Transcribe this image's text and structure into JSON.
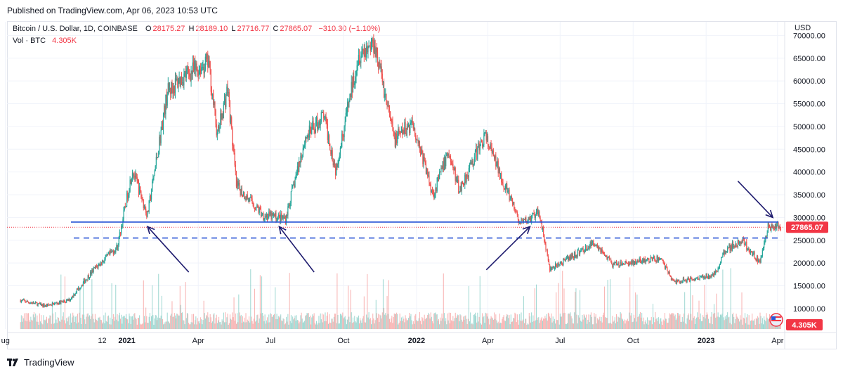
{
  "header": {
    "published": "Published on TradingView.com, Apr 06, 2023 10:53 UTC"
  },
  "legend": {
    "symbol": "Bitcoin / U.S. Dollar, 1D, COINBASE",
    "o_label": "O",
    "o_value": "28175.27",
    "h_label": "H",
    "h_value": "28189.10",
    "l_label": "L",
    "l_value": "27716.77",
    "c_label": "C",
    "c_value": "27865.07",
    "change": "−310.30 (−1.10%)",
    "vol_label": "Vol · BTC",
    "vol_value": "4.305K"
  },
  "footer": {
    "brand": "TradingView"
  },
  "colors": {
    "up": "#26a69a",
    "down": "#ef5350",
    "line": "#2a56d6",
    "arrow": "#1e1b6e",
    "last_price_bg": "#f23645"
  },
  "chart_data": {
    "type": "candlestick",
    "currency_label": "USD",
    "y_ticks": [
      "70000.00",
      "65000.00",
      "60000.00",
      "55000.00",
      "50000.00",
      "45000.00",
      "40000.00",
      "35000.00",
      "30000.00",
      "25000.00",
      "20000.00",
      "15000.00",
      "10000.00"
    ],
    "y_range": [
      5500,
      73000
    ],
    "x_ticks": [
      "ug",
      "12",
      "2021",
      "Apr",
      "Jul",
      "Oct",
      "2022",
      "Apr",
      "Jul",
      "Oct",
      "2023",
      "Apr"
    ],
    "bold_x_ticks": [
      "2021",
      "2022",
      "2023"
    ],
    "last_price": "27865.07",
    "last_volume": "4.305K",
    "support_line": 29000,
    "dashed_line": 25500,
    "anchors": [
      {
        "date": "2020-08-20",
        "price": 11800
      },
      {
        "date": "2020-09-20",
        "price": 10600
      },
      {
        "date": "2020-10-20",
        "price": 11800
      },
      {
        "date": "2020-11-20",
        "price": 18500
      },
      {
        "date": "2020-12-20",
        "price": 23500
      },
      {
        "date": "2021-01-08",
        "price": 40500
      },
      {
        "date": "2021-01-27",
        "price": 30500
      },
      {
        "date": "2021-02-21",
        "price": 57500
      },
      {
        "date": "2021-03-13",
        "price": 61000
      },
      {
        "date": "2021-04-14",
        "price": 64000
      },
      {
        "date": "2021-04-25",
        "price": 48000
      },
      {
        "date": "2021-05-08",
        "price": 58500
      },
      {
        "date": "2021-05-19",
        "price": 37000
      },
      {
        "date": "2021-06-22",
        "price": 30500
      },
      {
        "date": "2021-07-20",
        "price": 29800
      },
      {
        "date": "2021-08-14",
        "price": 47500
      },
      {
        "date": "2021-09-06",
        "price": 52500
      },
      {
        "date": "2021-09-21",
        "price": 40500
      },
      {
        "date": "2021-10-20",
        "price": 66000
      },
      {
        "date": "2021-11-09",
        "price": 68500
      },
      {
        "date": "2021-12-04",
        "price": 47000
      },
      {
        "date": "2021-12-27",
        "price": 51000
      },
      {
        "date": "2022-01-22",
        "price": 35000
      },
      {
        "date": "2022-02-10",
        "price": 44500
      },
      {
        "date": "2022-02-24",
        "price": 36000
      },
      {
        "date": "2022-03-28",
        "price": 48000
      },
      {
        "date": "2022-05-12",
        "price": 28500
      },
      {
        "date": "2022-06-05",
        "price": 31000
      },
      {
        "date": "2022-06-18",
        "price": 18500
      },
      {
        "date": "2022-08-14",
        "price": 24500
      },
      {
        "date": "2022-09-06",
        "price": 19500
      },
      {
        "date": "2022-11-05",
        "price": 21000
      },
      {
        "date": "2022-11-21",
        "price": 15800
      },
      {
        "date": "2023-01-12",
        "price": 17500
      },
      {
        "date": "2023-01-25",
        "price": 23000
      },
      {
        "date": "2023-02-16",
        "price": 24800
      },
      {
        "date": "2023-03-10",
        "price": 20000
      },
      {
        "date": "2023-03-20",
        "price": 28000
      },
      {
        "date": "2023-04-05",
        "price": 27865
      }
    ],
    "x_tick_dates": [
      "2020-08-01",
      "2020-12-01",
      "2021-01-01",
      "2021-04-01",
      "2021-07-01",
      "2021-10-01",
      "2022-01-01",
      "2022-04-01",
      "2022-07-01",
      "2022-10-01",
      "2023-01-01",
      "2023-04-01"
    ],
    "x_range": [
      "2020-08-03",
      "2023-04-10"
    ],
    "arrows": [
      {
        "from": [
          "2021-03-20",
          18000
        ],
        "to": [
          "2021-01-27",
          28000
        ]
      },
      {
        "from": [
          "2021-08-25",
          18000
        ],
        "to": [
          "2021-07-12",
          28000
        ]
      },
      {
        "from": [
          "2022-03-30",
          18500
        ],
        "to": [
          "2022-05-24",
          28000
        ]
      },
      {
        "from": [
          "2023-02-10",
          38000
        ],
        "to": [
          "2023-03-26",
          30000
        ]
      }
    ]
  }
}
